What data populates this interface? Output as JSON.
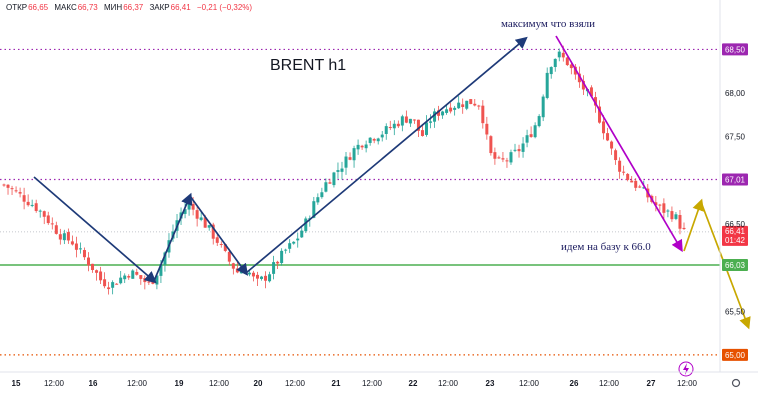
{
  "header": {
    "open_label": "ОТКР",
    "open_value": "66,65",
    "high_label": "МАКС",
    "high_value": "66,73",
    "low_label": "МИН",
    "low_value": "66,37",
    "close_label": "ЗАКР",
    "close_value": "66,41",
    "change": "−0,21 (−0,32%)"
  },
  "chart_data": {
    "type": "candlestick",
    "title": "BRENT h1",
    "ylim": [
      64.85,
      68.86
    ],
    "y_ticks": [
      "68,00",
      "67,50",
      "66,50",
      "65,50"
    ],
    "x_ticks": [
      "15",
      "12:00",
      "16",
      "12:00",
      "19",
      "12:00",
      "20",
      "12:00",
      "21",
      "12:00",
      "22",
      "12:00",
      "23",
      "12:00",
      "26",
      "12:00",
      "27",
      "12:00"
    ],
    "levels": [
      {
        "name": "maximum",
        "value": 68.5,
        "label": "68,50",
        "color": "#9c27b0",
        "style": "dotted"
      },
      {
        "name": "resistance",
        "value": 67.01,
        "label": "67,01",
        "color": "#9c27b0",
        "style": "dotted"
      },
      {
        "name": "base",
        "value": 66.03,
        "label": "66,03",
        "color": "#4caf50",
        "style": "solid"
      },
      {
        "name": "support",
        "value": 65.0,
        "label": "65,00",
        "color": "#e65100",
        "style": "dotted"
      }
    ],
    "current_price": {
      "value": 66.41,
      "label": "66,41",
      "countdown": "01:42",
      "color": "#f23645"
    },
    "annotations": [
      {
        "text": "максимум что взяли"
      },
      {
        "text": "идем на базу к 66.0"
      }
    ],
    "path_points": [
      66.95,
      66.88,
      66.8,
      66.72,
      66.62,
      66.48,
      66.35,
      66.3,
      66.15,
      66.02,
      65.85,
      65.8,
      65.88,
      65.95,
      65.88,
      65.8,
      66.0,
      66.3,
      66.6,
      66.72,
      66.6,
      66.45,
      66.3,
      66.1,
      65.95,
      65.98,
      65.82,
      65.9,
      66.05,
      66.2,
      66.3,
      66.5,
      66.75,
      66.95,
      67.08,
      67.2,
      67.35,
      67.45,
      67.5,
      67.55,
      67.62,
      67.7,
      67.72,
      67.5,
      67.72,
      67.8,
      67.85,
      67.88,
      67.9,
      67.88,
      67.3,
      67.2,
      67.25,
      67.35,
      67.5,
      67.7,
      68.3,
      68.45,
      68.35,
      68.15,
      68.0,
      67.8,
      67.5,
      67.2,
      67.05,
      66.95,
      66.85,
      66.72,
      66.65,
      66.6,
      66.41
    ]
  }
}
